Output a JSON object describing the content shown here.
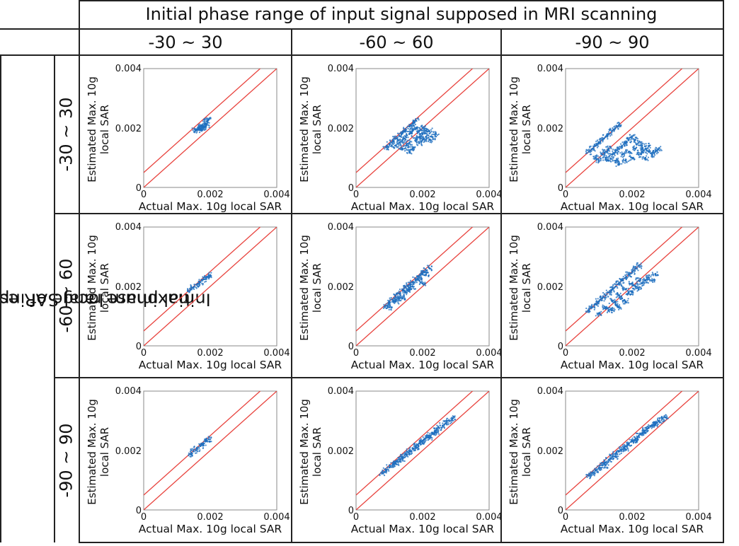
{
  "header": {
    "top_title": "Initial phase range of input signal supposed in MRI scanning",
    "left_title_line1": "Initial phase range of input signal in selecting",
    "left_title_line2": "maximum local SAR estimation point"
  },
  "columns": [
    {
      "label": "-30 ~ 30",
      "key": "30"
    },
    {
      "label": "-60 ~ 60",
      "key": "60"
    },
    {
      "label": "-90 ~ 90",
      "key": "90"
    }
  ],
  "rows": [
    {
      "label": "-30 ~ 30",
      "key": "30"
    },
    {
      "label": "-60 ~ 60",
      "key": "60"
    },
    {
      "label": "-90 ~ 90",
      "key": "90"
    }
  ],
  "chart_data": [
    {
      "type": "scatter",
      "row": "-30 ~ 30",
      "col": "-30 ~ 30",
      "xlabel": "Actual Max. 10g local SAR",
      "ylabel": "Estimated Max. 10g local SAR",
      "xlim": [
        0,
        0.004
      ],
      "ylim": [
        0,
        0.004
      ],
      "ticks": [
        "0",
        "0.002",
        "0.004"
      ],
      "point_color": "#1f6fbf",
      "reference_lines": [
        {
          "y_intercept": 0.0005,
          "slope": 1
        },
        {
          "y_intercept": 0,
          "slope": 1
        }
      ],
      "points": [
        [
          0.00155,
          0.00192
        ],
        [
          0.00165,
          0.002
        ],
        [
          0.00175,
          0.00207
        ],
        [
          0.00185,
          0.00215
        ],
        [
          0.0019,
          0.00222
        ],
        [
          0.0018,
          0.00205
        ],
        [
          0.0017,
          0.00198
        ],
        [
          0.0016,
          0.00194
        ],
        [
          0.00188,
          0.0021
        ],
        [
          0.00193,
          0.00226
        ],
        [
          0.00178,
          0.002
        ],
        [
          0.00168,
          0.00203
        ]
      ]
    },
    {
      "type": "scatter",
      "row": "-30 ~ 30",
      "col": "-60 ~ 60",
      "xlabel": "Actual Max. 10g local SAR",
      "ylabel": "Estimated Max. 10g local SAR",
      "xlim": [
        0,
        0.004
      ],
      "ylim": [
        0,
        0.004
      ],
      "ticks": [
        "0",
        "0.002",
        "0.004"
      ],
      "point_color": "#1f6fbf",
      "reference_lines": [
        {
          "y_intercept": 0.0005,
          "slope": 1
        },
        {
          "y_intercept": 0,
          "slope": 1
        }
      ],
      "points": [
        [
          0.0009,
          0.00135
        ],
        [
          0.001,
          0.00145
        ],
        [
          0.0011,
          0.00155
        ],
        [
          0.0012,
          0.00165
        ],
        [
          0.0013,
          0.00175
        ],
        [
          0.0014,
          0.00185
        ],
        [
          0.0015,
          0.00195
        ],
        [
          0.0016,
          0.00205
        ],
        [
          0.0017,
          0.00215
        ],
        [
          0.0018,
          0.00225
        ],
        [
          0.0012,
          0.0014
        ],
        [
          0.0013,
          0.0015
        ],
        [
          0.0014,
          0.0016
        ],
        [
          0.0015,
          0.0017
        ],
        [
          0.0016,
          0.0018
        ],
        [
          0.0017,
          0.0019
        ],
        [
          0.0018,
          0.002
        ],
        [
          0.0019,
          0.0019
        ],
        [
          0.002,
          0.0018
        ],
        [
          0.0021,
          0.0017
        ],
        [
          0.0022,
          0.0016
        ],
        [
          0.0023,
          0.0017
        ],
        [
          0.0019,
          0.0015
        ],
        [
          0.0017,
          0.0013
        ],
        [
          0.0016,
          0.0015
        ],
        [
          0.002,
          0.002
        ],
        [
          0.0021,
          0.0019
        ],
        [
          0.0015,
          0.0014
        ],
        [
          0.0014,
          0.0013
        ],
        [
          0.0024,
          0.0018
        ],
        [
          0.0018,
          0.0016
        ],
        [
          0.0019,
          0.0017
        ],
        [
          0.002,
          0.0016
        ],
        [
          0.0016,
          0.0012
        ],
        [
          0.0022,
          0.0019
        ]
      ]
    },
    {
      "type": "scatter",
      "row": "-30 ~ 30",
      "col": "-90 ~ 90",
      "xlabel": "Actual Max. 10g local SAR",
      "ylabel": "Estimated Max. 10g local SAR",
      "xlim": [
        0,
        0.004
      ],
      "ylim": [
        0,
        0.004
      ],
      "ticks": [
        "0",
        "0.002",
        "0.004"
      ],
      "point_color": "#1f6fbf",
      "reference_lines": [
        {
          "y_intercept": 0.0005,
          "slope": 1
        },
        {
          "y_intercept": 0,
          "slope": 1
        }
      ],
      "points": [
        [
          0.0007,
          0.0012
        ],
        [
          0.0008,
          0.0013
        ],
        [
          0.0009,
          0.0014
        ],
        [
          0.001,
          0.0015
        ],
        [
          0.0011,
          0.0016
        ],
        [
          0.0012,
          0.0017
        ],
        [
          0.0013,
          0.0018
        ],
        [
          0.0014,
          0.0019
        ],
        [
          0.0015,
          0.002
        ],
        [
          0.0016,
          0.0021
        ],
        [
          0.0009,
          0.001
        ],
        [
          0.001,
          0.0009
        ],
        [
          0.0011,
          0.0011
        ],
        [
          0.0012,
          0.001
        ],
        [
          0.0013,
          0.0009
        ],
        [
          0.0014,
          0.0011
        ],
        [
          0.0015,
          0.0012
        ],
        [
          0.0016,
          0.0013
        ],
        [
          0.0017,
          0.0014
        ],
        [
          0.0018,
          0.0015
        ],
        [
          0.0019,
          0.0016
        ],
        [
          0.002,
          0.0017
        ],
        [
          0.0021,
          0.0016
        ],
        [
          0.0022,
          0.0015
        ],
        [
          0.0023,
          0.0014
        ],
        [
          0.0024,
          0.0013
        ],
        [
          0.0025,
          0.0012
        ],
        [
          0.0026,
          0.0011
        ],
        [
          0.0027,
          0.0012
        ],
        [
          0.0028,
          0.0013
        ],
        [
          0.002,
          0.001
        ],
        [
          0.0018,
          0.0009
        ],
        [
          0.0016,
          0.0008
        ],
        [
          0.0019,
          0.0012
        ],
        [
          0.0021,
          0.0013
        ],
        [
          0.0017,
          0.0011
        ],
        [
          0.0015,
          0.0009
        ],
        [
          0.0013,
          0.0013
        ],
        [
          0.0012,
          0.0012
        ],
        [
          0.0022,
          0.0011
        ],
        [
          0.0024,
          0.001
        ],
        [
          0.0025,
          0.0014
        ],
        [
          0.0023,
          0.0012
        ]
      ]
    },
    {
      "type": "scatter",
      "row": "-60 ~ 60",
      "col": "-30 ~ 30",
      "xlabel": "Actual Max. 10g local SAR",
      "ylabel": "Estimated Max. 10g local SAR",
      "xlim": [
        0,
        0.004
      ],
      "ylim": [
        0,
        0.004
      ],
      "ticks": [
        "0",
        "0.002",
        "0.004"
      ],
      "point_color": "#1f6fbf",
      "reference_lines": [
        {
          "y_intercept": 0.0005,
          "slope": 1
        },
        {
          "y_intercept": 0,
          "slope": 1
        }
      ],
      "points": [
        [
          0.0014,
          0.00188
        ],
        [
          0.0015,
          0.00197
        ],
        [
          0.0016,
          0.00206
        ],
        [
          0.0017,
          0.00215
        ],
        [
          0.0018,
          0.00224
        ],
        [
          0.0019,
          0.00233
        ],
        [
          0.00195,
          0.00238
        ]
      ]
    },
    {
      "type": "scatter",
      "row": "-60 ~ 60",
      "col": "-60 ~ 60",
      "xlabel": "Actual Max. 10g local SAR",
      "ylabel": "Estimated Max. 10g local SAR",
      "xlim": [
        0,
        0.004
      ],
      "ylim": [
        0,
        0.004
      ],
      "ticks": [
        "0",
        "0.002",
        "0.004"
      ],
      "point_color": "#1f6fbf",
      "reference_lines": [
        {
          "y_intercept": 0.0005,
          "slope": 1
        },
        {
          "y_intercept": 0,
          "slope": 1
        }
      ],
      "points": [
        [
          0.0009,
          0.00135
        ],
        [
          0.001,
          0.00145
        ],
        [
          0.0011,
          0.00155
        ],
        [
          0.0012,
          0.00165
        ],
        [
          0.0013,
          0.00175
        ],
        [
          0.0014,
          0.00185
        ],
        [
          0.0015,
          0.00195
        ],
        [
          0.0016,
          0.00205
        ],
        [
          0.0017,
          0.00215
        ],
        [
          0.0018,
          0.00225
        ],
        [
          0.0019,
          0.00235
        ],
        [
          0.002,
          0.00245
        ],
        [
          0.0021,
          0.00255
        ],
        [
          0.0022,
          0.00262
        ],
        [
          0.001,
          0.0013
        ],
        [
          0.0012,
          0.0015
        ],
        [
          0.0013,
          0.0016
        ],
        [
          0.0015,
          0.0018
        ],
        [
          0.0017,
          0.002
        ],
        [
          0.0019,
          0.0022
        ],
        [
          0.0021,
          0.0024
        ],
        [
          0.0016,
          0.0019
        ],
        [
          0.0014,
          0.0016
        ],
        [
          0.002,
          0.0021
        ]
      ]
    },
    {
      "type": "scatter",
      "row": "-60 ~ 60",
      "col": "-90 ~ 90",
      "xlabel": "Actual Max. 10g local SAR",
      "ylabel": "Estimated Max. 10g local SAR",
      "xlim": [
        0,
        0.004
      ],
      "ylim": [
        0,
        0.004
      ],
      "ticks": [
        "0",
        "0.002",
        "0.004"
      ],
      "point_color": "#1f6fbf",
      "reference_lines": [
        {
          "y_intercept": 0.0005,
          "slope": 1
        },
        {
          "y_intercept": 0,
          "slope": 1
        }
      ],
      "points": [
        [
          0.0007,
          0.0012
        ],
        [
          0.0008,
          0.0013
        ],
        [
          0.0009,
          0.0014
        ],
        [
          0.001,
          0.0015
        ],
        [
          0.0011,
          0.0016
        ],
        [
          0.0012,
          0.0017
        ],
        [
          0.0013,
          0.0018
        ],
        [
          0.0014,
          0.0019
        ],
        [
          0.0015,
          0.002
        ],
        [
          0.0016,
          0.0021
        ],
        [
          0.0017,
          0.0022
        ],
        [
          0.0018,
          0.0023
        ],
        [
          0.0019,
          0.0024
        ],
        [
          0.002,
          0.0025
        ],
        [
          0.0021,
          0.0026
        ],
        [
          0.0022,
          0.0027
        ],
        [
          0.001,
          0.0011
        ],
        [
          0.0012,
          0.0013
        ],
        [
          0.0013,
          0.0012
        ],
        [
          0.0014,
          0.0015
        ],
        [
          0.0015,
          0.0014
        ],
        [
          0.0016,
          0.0017
        ],
        [
          0.0017,
          0.0016
        ],
        [
          0.0018,
          0.0019
        ],
        [
          0.0019,
          0.0018
        ],
        [
          0.002,
          0.0021
        ],
        [
          0.0021,
          0.002
        ],
        [
          0.0022,
          0.0022
        ],
        [
          0.0023,
          0.0021
        ],
        [
          0.0024,
          0.0022
        ],
        [
          0.0025,
          0.0023
        ],
        [
          0.0026,
          0.0022
        ],
        [
          0.0027,
          0.0024
        ],
        [
          0.0018,
          0.0015
        ],
        [
          0.0016,
          0.0013
        ],
        [
          0.0014,
          0.0012
        ],
        [
          0.002,
          0.0018
        ],
        [
          0.0022,
          0.0019
        ]
      ]
    },
    {
      "type": "scatter",
      "row": "-90 ~ 90",
      "col": "-30 ~ 30",
      "xlabel": "Actual Max. 10g local SAR",
      "ylabel": "Estimated Max. 10g local SAR",
      "xlim": [
        0,
        0.004
      ],
      "ylim": [
        0,
        0.004
      ],
      "ticks": [
        "0",
        "0.002",
        "0.004"
      ],
      "point_color": "#1f6fbf",
      "reference_lines": [
        {
          "y_intercept": 0.0005,
          "slope": 1
        },
        {
          "y_intercept": 0,
          "slope": 1
        }
      ],
      "points": [
        [
          0.0014,
          0.00188
        ],
        [
          0.0015,
          0.00197
        ],
        [
          0.0016,
          0.00206
        ],
        [
          0.0017,
          0.00215
        ],
        [
          0.0018,
          0.00224
        ],
        [
          0.0019,
          0.00233
        ],
        [
          0.00195,
          0.00238
        ]
      ]
    },
    {
      "type": "scatter",
      "row": "-90 ~ 90",
      "col": "-60 ~ 60",
      "xlabel": "Actual Max. 10g local SAR",
      "ylabel": "Estimated Max. 10g local SAR",
      "xlim": [
        0,
        0.004
      ],
      "ylim": [
        0,
        0.004
      ],
      "ticks": [
        "0",
        "0.002",
        "0.004"
      ],
      "point_color": "#1f6fbf",
      "reference_lines": [
        {
          "y_intercept": 0.0005,
          "slope": 1
        },
        {
          "y_intercept": 0,
          "slope": 1
        }
      ],
      "points": [
        [
          0.0008,
          0.00125
        ],
        [
          0.0009,
          0.00134
        ],
        [
          0.001,
          0.00143
        ],
        [
          0.0011,
          0.00152
        ],
        [
          0.0012,
          0.00161
        ],
        [
          0.0013,
          0.0017
        ],
        [
          0.0014,
          0.00179
        ],
        [
          0.0015,
          0.00188
        ],
        [
          0.0016,
          0.00197
        ],
        [
          0.0017,
          0.00206
        ],
        [
          0.0018,
          0.00215
        ],
        [
          0.0019,
          0.00224
        ],
        [
          0.002,
          0.00233
        ],
        [
          0.0021,
          0.00242
        ],
        [
          0.0022,
          0.00251
        ],
        [
          0.0023,
          0.0026
        ],
        [
          0.0024,
          0.00268
        ],
        [
          0.0025,
          0.00276
        ],
        [
          0.0026,
          0.00284
        ],
        [
          0.0027,
          0.00292
        ],
        [
          0.0028,
          0.003
        ],
        [
          0.0029,
          0.00308
        ],
        [
          0.0012,
          0.00155
        ],
        [
          0.0014,
          0.00172
        ],
        [
          0.0016,
          0.0019
        ],
        [
          0.0018,
          0.00208
        ],
        [
          0.002,
          0.00225
        ],
        [
          0.0022,
          0.00243
        ],
        [
          0.0024,
          0.00262
        ]
      ]
    },
    {
      "type": "scatter",
      "row": "-90 ~ 90",
      "col": "-90 ~ 90",
      "xlabel": "Actual Max. 10g local SAR",
      "ylabel": "Estimated Max. 10g local SAR",
      "xlim": [
        0,
        0.004
      ],
      "ylim": [
        0,
        0.004
      ],
      "ticks": [
        "0",
        "0.002",
        "0.004"
      ],
      "point_color": "#1f6fbf",
      "reference_lines": [
        {
          "y_intercept": 0.0005,
          "slope": 1
        },
        {
          "y_intercept": 0,
          "slope": 1
        }
      ],
      "points": [
        [
          0.0007,
          0.00115
        ],
        [
          0.0008,
          0.00124
        ],
        [
          0.0009,
          0.00133
        ],
        [
          0.001,
          0.00142
        ],
        [
          0.0011,
          0.00151
        ],
        [
          0.0012,
          0.0016
        ],
        [
          0.0013,
          0.00169
        ],
        [
          0.0014,
          0.00178
        ],
        [
          0.0015,
          0.00187
        ],
        [
          0.0016,
          0.00196
        ],
        [
          0.0017,
          0.00205
        ],
        [
          0.0018,
          0.00214
        ],
        [
          0.0019,
          0.00223
        ],
        [
          0.002,
          0.00232
        ],
        [
          0.0021,
          0.00241
        ],
        [
          0.0022,
          0.0025
        ],
        [
          0.0023,
          0.00259
        ],
        [
          0.0024,
          0.00268
        ],
        [
          0.0025,
          0.00277
        ],
        [
          0.0026,
          0.00284
        ],
        [
          0.0027,
          0.00292
        ],
        [
          0.0028,
          0.003
        ],
        [
          0.0029,
          0.00306
        ],
        [
          0.003,
          0.00312
        ],
        [
          0.0012,
          0.0015
        ],
        [
          0.0015,
          0.0018
        ],
        [
          0.0018,
          0.00205
        ],
        [
          0.0021,
          0.00235
        ],
        [
          0.0024,
          0.0026
        ],
        [
          0.0027,
          0.00287
        ]
      ]
    }
  ]
}
